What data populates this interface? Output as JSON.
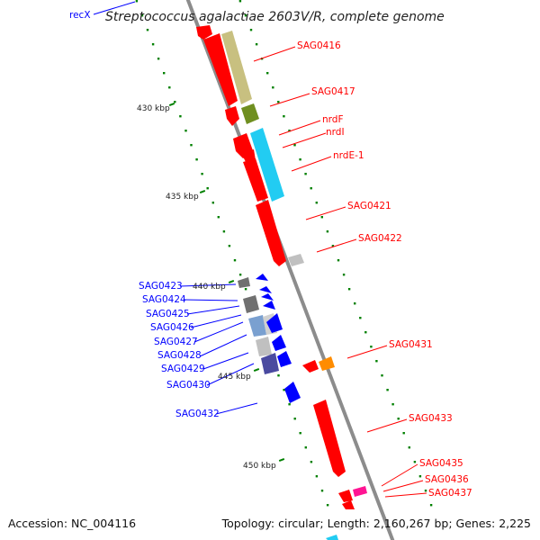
{
  "title": "Streptococcus agalactiae 2603V/R, complete genome",
  "footer": {
    "accession": "Accession: NC_004116",
    "summary": "Topology: circular; Length: 2,160,267 bp; Genes: 2,225"
  },
  "colors": {
    "red": "#ff0000",
    "blue": "#0000ff",
    "backbone": "#8c8c8c",
    "tick": "#008000",
    "olive_light": "#c8c080",
    "olive_dark": "#6f8f20",
    "cyan": "#22ccf2",
    "orange": "#ff8c00",
    "magenta": "#ff1493"
  },
  "kbp_ticks": [
    "430 kbp",
    "435 kbp",
    "440 kbp",
    "445 kbp",
    "450 kbp"
  ],
  "genes_right": [
    {
      "label": "SAG0416"
    },
    {
      "label": "SAG0417"
    },
    {
      "label": "nrdF"
    },
    {
      "label": "nrdI"
    },
    {
      "label": "nrdE-1"
    },
    {
      "label": "SAG0421"
    },
    {
      "label": "SAG0422"
    },
    {
      "label": "SAG0431"
    },
    {
      "label": "SAG0433"
    },
    {
      "label": "SAG0435"
    },
    {
      "label": "SAG0436"
    },
    {
      "label": "SAG0437"
    }
  ],
  "genes_left": [
    {
      "label": "recX"
    },
    {
      "label": "SAG0423"
    },
    {
      "label": "SAG0424"
    },
    {
      "label": "SAG0425"
    },
    {
      "label": "SAG0426"
    },
    {
      "label": "SAG0427"
    },
    {
      "label": "SAG0428"
    },
    {
      "label": "SAG0429"
    },
    {
      "label": "SAG0430"
    },
    {
      "label": "SAG0432"
    }
  ]
}
